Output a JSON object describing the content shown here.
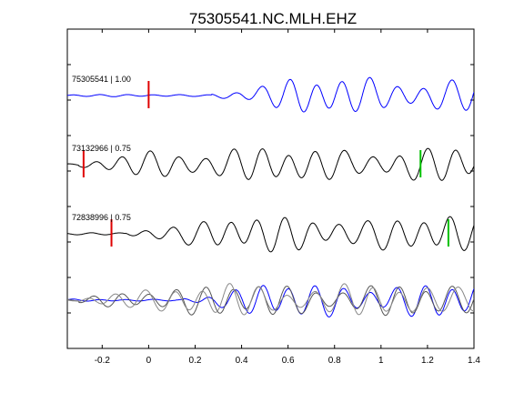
{
  "chart_data": {
    "type": "line",
    "title": "75305541.NC.MLH.EHZ",
    "xlabel": "",
    "ylabel": "",
    "xlim": [
      -0.35,
      1.4
    ],
    "xticks": [
      -0.2,
      0,
      0.2,
      0.4,
      0.6,
      0.8,
      1,
      1.2,
      1.4
    ],
    "xtick_labels": [
      "-0.2",
      "0",
      "0.2",
      "0.4",
      "0.6",
      "0.8",
      "1",
      "1.2",
      "1.4"
    ],
    "yticks_count": 8,
    "grid": false,
    "traces": [
      {
        "label": "75305541 | 1.00",
        "color": "#0000ff",
        "offset": 0,
        "amplitude": 0.52,
        "frequency": 8.6,
        "phase": 0.3,
        "onset": 0.27,
        "red_marker": 0.0,
        "green_marker": null
      },
      {
        "label": "73132966 | 0.75",
        "color": "#000000",
        "offset": 1,
        "amplitude": 0.48,
        "frequency": 8.4,
        "phase": 1.1,
        "onset": -0.3,
        "red_marker": -0.28,
        "green_marker": 1.17
      },
      {
        "label": "72838996 | 0.75",
        "color": "#000000",
        "offset": 2,
        "amplitude": 0.5,
        "frequency": 8.4,
        "phase": 2.0,
        "onset": -0.1,
        "red_marker": -0.16,
        "green_marker": 1.29
      }
    ],
    "overlay": {
      "offset": 3,
      "series": [
        {
          "color": "#0000ff",
          "amplitude": 0.5,
          "frequency": 8.6,
          "phase": 0.3,
          "onset": 0.15
        },
        {
          "color": "#555555",
          "amplitude": 0.45,
          "frequency": 8.4,
          "phase": 1.4,
          "onset": -0.3
        },
        {
          "color": "#888888",
          "amplitude": 0.45,
          "frequency": 8.2,
          "phase": 2.3,
          "onset": -0.3
        }
      ]
    },
    "marker_colors": {
      "red": "#e00000",
      "green": "#00c000"
    }
  }
}
